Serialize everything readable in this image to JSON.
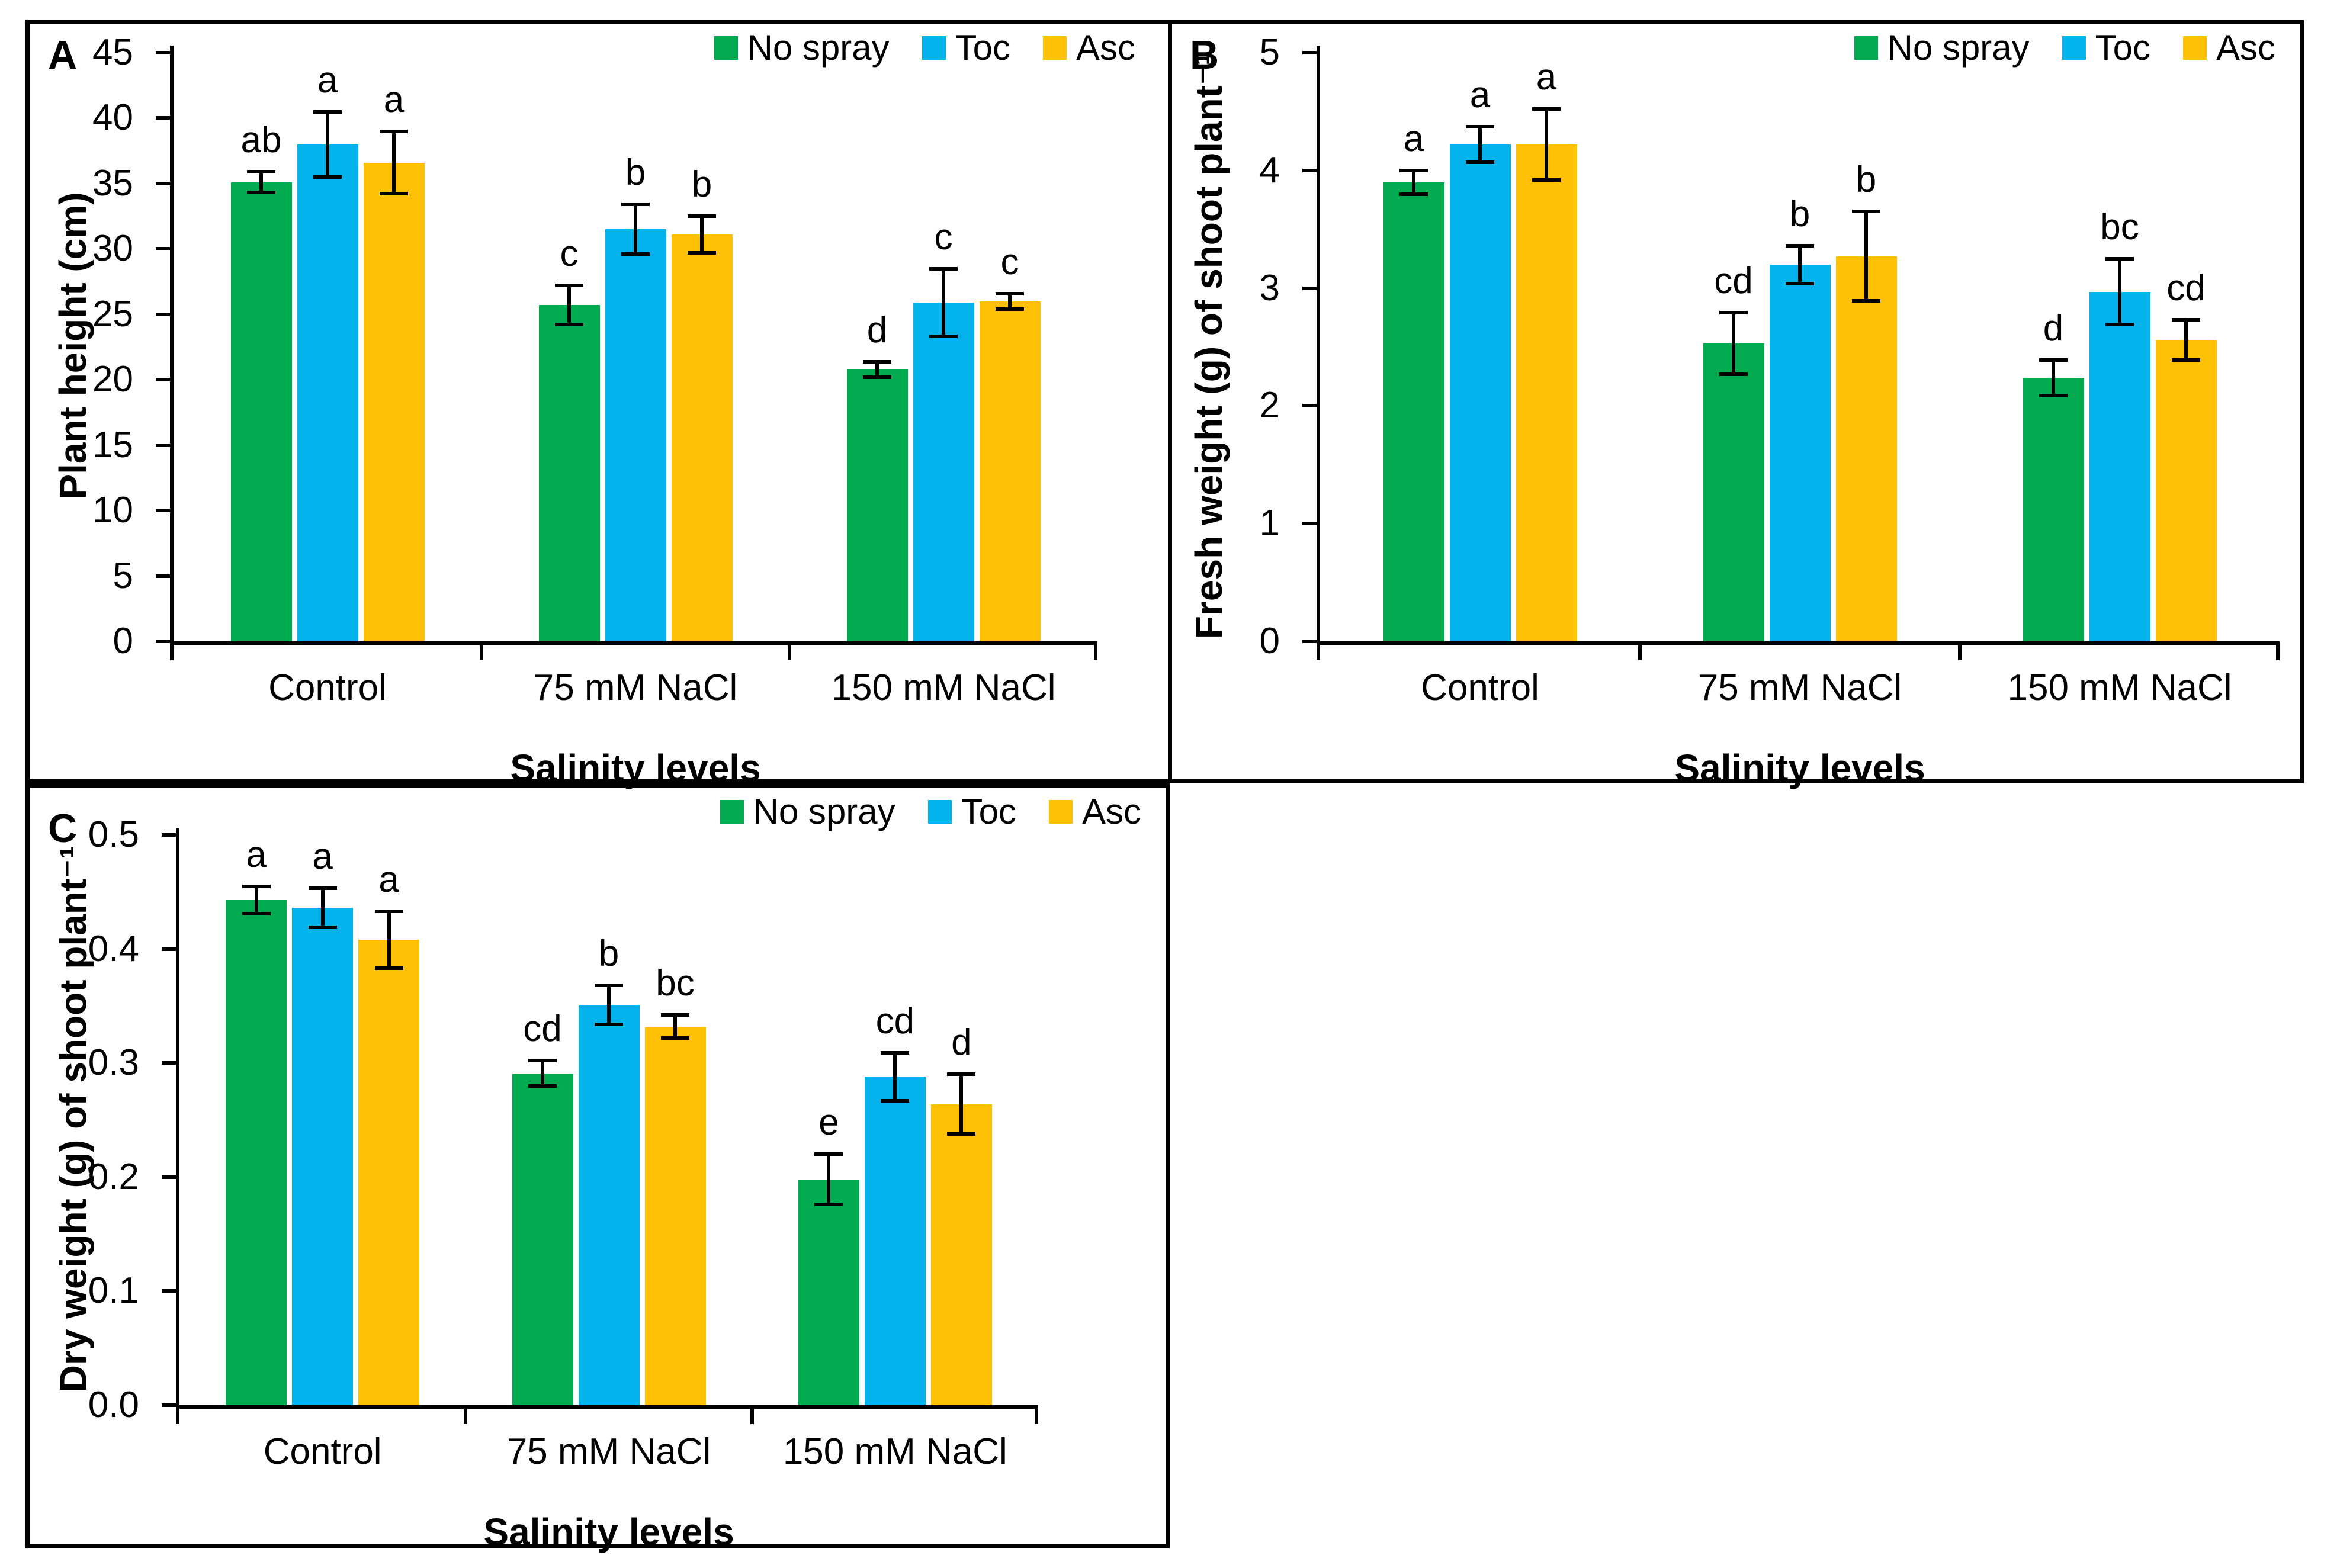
{
  "chart_data": [
    {
      "panel": "A",
      "type": "bar",
      "title": "",
      "xlabel": "Salinity levels",
      "ylabel": "Plant height (cm)",
      "ylim": [
        0,
        45
      ],
      "yticks": [
        "0",
        "5",
        "10",
        "15",
        "20",
        "25",
        "30",
        "35",
        "40",
        "45"
      ],
      "categories": [
        "Control",
        "75 mM NaCl",
        "150 mM NaCl"
      ],
      "legend_position": "top-right",
      "grid": false,
      "series": [
        {
          "name": "No spray",
          "color": "#02AB50",
          "values": [
            35.1,
            25.7,
            20.8
          ],
          "errors": [
            0.7,
            1.4,
            0.5
          ],
          "letters": [
            "ab",
            "c",
            "d"
          ]
        },
        {
          "name": "Toc",
          "color": "#04B2EC",
          "values": [
            38.0,
            31.5,
            25.9
          ],
          "errors": [
            2.4,
            1.8,
            2.5
          ],
          "letters": [
            "a",
            "b",
            "c"
          ]
        },
        {
          "name": "Asc",
          "color": "#FFC105",
          "values": [
            36.6,
            31.1,
            26.0
          ],
          "errors": [
            2.3,
            1.3,
            0.5
          ],
          "letters": [
            "a",
            "b",
            "c"
          ]
        }
      ]
    },
    {
      "panel": "B",
      "type": "bar",
      "title": "",
      "xlabel": "Salinity levels",
      "ylabel": "Fresh weight (g) of shoot plant⁻¹",
      "ylim": [
        0,
        5
      ],
      "yticks": [
        "0",
        "1",
        "2",
        "3",
        "4",
        "5"
      ],
      "categories": [
        "Control",
        "75 mM NaCl",
        "150 mM NaCl"
      ],
      "legend_position": "top-right",
      "grid": false,
      "series": [
        {
          "name": "No spray",
          "color": "#02AB50",
          "values": [
            3.9,
            2.53,
            2.24
          ],
          "errors": [
            0.09,
            0.25,
            0.14
          ],
          "letters": [
            "a",
            "cd",
            "d"
          ]
        },
        {
          "name": "Toc",
          "color": "#04B2EC",
          "values": [
            4.22,
            3.2,
            2.97
          ],
          "errors": [
            0.14,
            0.15,
            0.27
          ],
          "letters": [
            "a",
            "b",
            "bc"
          ]
        },
        {
          "name": "Asc",
          "color": "#FFC105",
          "values": [
            4.22,
            3.27,
            2.56
          ],
          "errors": [
            0.29,
            0.37,
            0.16
          ],
          "letters": [
            "a",
            "b",
            "cd"
          ]
        }
      ]
    },
    {
      "panel": "C",
      "type": "bar",
      "title": "",
      "xlabel": "Salinity levels",
      "ylabel": "Dry weight (g) of shoot plant⁻¹",
      "ylim": [
        0,
        0.5
      ],
      "yticks": [
        "0.0",
        "0.1",
        "0.2",
        "0.3",
        "0.4",
        "0.5"
      ],
      "categories": [
        "Control",
        "75 mM NaCl",
        "150 mM NaCl"
      ],
      "legend_position": "top-right",
      "grid": false,
      "series": [
        {
          "name": "No spray",
          "color": "#02AB50",
          "values": [
            0.443,
            0.291,
            0.198
          ],
          "errors": [
            0.011,
            0.01,
            0.021
          ],
          "letters": [
            "a",
            "cd",
            "e"
          ]
        },
        {
          "name": "Toc",
          "color": "#04B2EC",
          "values": [
            0.436,
            0.351,
            0.288
          ],
          "errors": [
            0.016,
            0.016,
            0.02
          ],
          "letters": [
            "a",
            "b",
            "cd"
          ]
        },
        {
          "name": "Asc",
          "color": "#FFC105",
          "values": [
            0.408,
            0.332,
            0.264
          ],
          "errors": [
            0.024,
            0.009,
            0.025
          ],
          "letters": [
            "a",
            "bc",
            "d"
          ]
        }
      ]
    }
  ]
}
